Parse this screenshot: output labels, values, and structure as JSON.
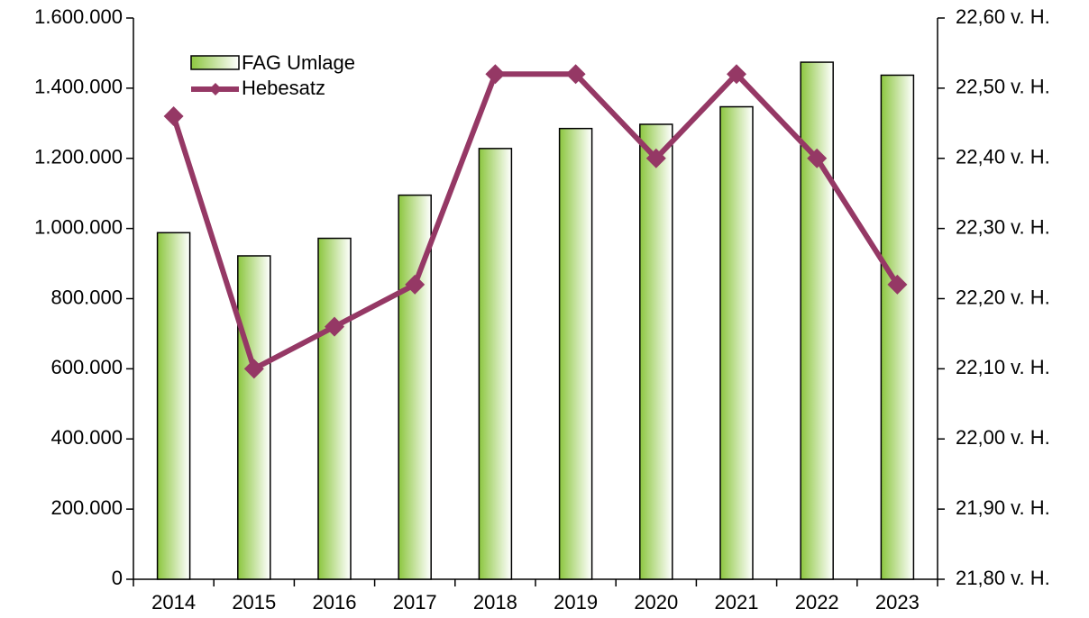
{
  "chart_data": {
    "type": "bar_line",
    "categories": [
      "2014",
      "2015",
      "2016",
      "2017",
      "2018",
      "2019",
      "2020",
      "2021",
      "2022",
      "2023"
    ],
    "series": [
      {
        "name": "FAG Umlage",
        "type": "bar",
        "color": "#8cc63f",
        "values": [
          988000,
          922000,
          972000,
          1095000,
          1228000,
          1285000,
          1297000,
          1347000,
          1474000,
          1437000
        ]
      },
      {
        "name": "Hebesatz",
        "type": "line",
        "axis": "y2",
        "color": "#953865",
        "values": [
          22.46,
          22.1,
          22.16,
          22.22,
          22.52,
          22.52,
          22.4,
          22.52,
          22.4,
          22.22
        ]
      }
    ],
    "ylim": [
      0,
      1600000
    ],
    "yticks": [
      0,
      {
        "value": 200000,
        "label": "200.000"
      },
      {
        "value": 400000,
        "label": "400.000"
      },
      {
        "value": 600000,
        "label": "600.000"
      },
      {
        "value": 800000,
        "label": "800.000"
      },
      {
        "value": 1000000,
        "label": "1.000.000"
      },
      {
        "value": 1200000,
        "label": "1.200.000"
      },
      {
        "value": 1400000,
        "label": "1.400.000"
      },
      {
        "value": 1600000,
        "label": "1.600.000"
      }
    ],
    "y2lim": [
      21.8,
      22.6
    ],
    "y2ticks": [
      {
        "value": 21.8,
        "label": "21,80 v. H."
      },
      {
        "value": 21.9,
        "label": "21,90 v. H."
      },
      {
        "value": 22.0,
        "label": "22,00 v. H."
      },
      {
        "value": 22.1,
        "label": "22,10 v. H."
      },
      {
        "value": 22.2,
        "label": "22,20 v. H."
      },
      {
        "value": 22.3,
        "label": "22,30 v. H."
      },
      {
        "value": 22.4,
        "label": "22,40 v. H."
      },
      {
        "value": 22.5,
        "label": "22,50 v. H."
      },
      {
        "value": 22.6,
        "label": "22,60 v. H."
      }
    ],
    "legend": "upper left"
  }
}
